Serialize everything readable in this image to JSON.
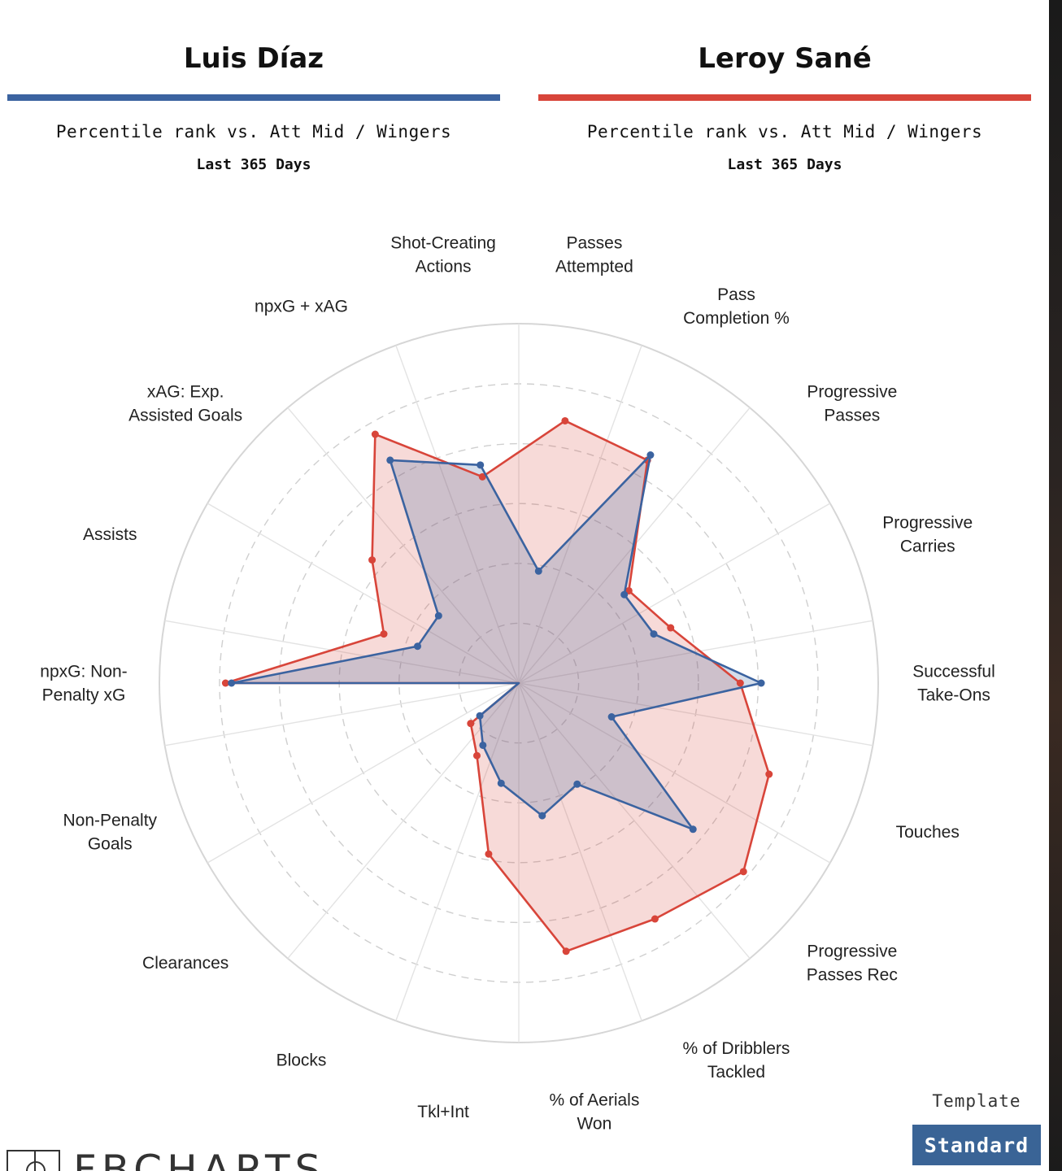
{
  "colors": {
    "player1": "#3b63a0",
    "player2": "#d8453a"
  },
  "players": [
    {
      "name": "Luis Díaz",
      "subtitle": "Percentile rank vs. Att Mid / Wingers",
      "period": "Last 365 Days"
    },
    {
      "name": "Leroy Sané",
      "subtitle": "Percentile rank vs. Att Mid / Wingers",
      "period": "Last 365 Days"
    }
  ],
  "template": {
    "caption": "Template",
    "value": "Standard"
  },
  "logo": {
    "text": "FBCHARTS"
  },
  "chart_data": {
    "type": "radar",
    "scale": [
      0,
      100
    ],
    "grid": true,
    "axes": [
      "Passes Attempted",
      "Pass Completion %",
      "Progressive Passes",
      "Progressive Carries",
      "Successful Take-Ons",
      "Touches",
      "Progressive Passes Rec",
      "% of Dribblers Tackled",
      "% of Aerials Won",
      "Tkl+Int",
      "Blocks",
      "Clearances",
      "Non-Penalty Goals",
      "npxG: Non-Penalty xG",
      "Assists",
      "xAG: Exp. Assisted Goals",
      "npxG + xAG",
      "Shot-Creating Actions"
    ],
    "axis_labels": [
      [
        "Passes",
        "Attempted"
      ],
      [
        "Pass",
        "Completion %"
      ],
      [
        "Progressive",
        "Passes"
      ],
      [
        "Progressive",
        "Carries"
      ],
      [
        "Successful",
        "Take-Ons"
      ],
      [
        "Touches"
      ],
      [
        "Progressive",
        "Passes Rec"
      ],
      [
        "% of Dribblers",
        "Tackled"
      ],
      [
        "% of Aerials",
        "Won"
      ],
      [
        "Tkl+Int"
      ],
      [
        "Blocks"
      ],
      [
        "Clearances"
      ],
      [
        "Non-Penalty",
        "Goals"
      ],
      [
        "npxG: Non-",
        "Penalty xG"
      ],
      [
        "Assists"
      ],
      [
        "xAG: Exp.",
        "Assisted Goals"
      ],
      [
        "npxG + xAG"
      ],
      [
        "Shot-Creating",
        "Actions"
      ]
    ],
    "series": [
      {
        "name": "Luis Díaz",
        "values": [
          38,
          88,
          46,
          48,
          81,
          33,
          76,
          39,
          45,
          34,
          24,
          17,
          0,
          96,
          36,
          35,
          86,
          74
        ]
      },
      {
        "name": "Leroy Sané",
        "values": [
          89,
          86,
          48,
          54,
          74,
          89,
          98,
          91,
          91,
          58,
          28,
          21,
          0,
          98,
          48,
          64,
          96,
          70
        ]
      }
    ]
  }
}
